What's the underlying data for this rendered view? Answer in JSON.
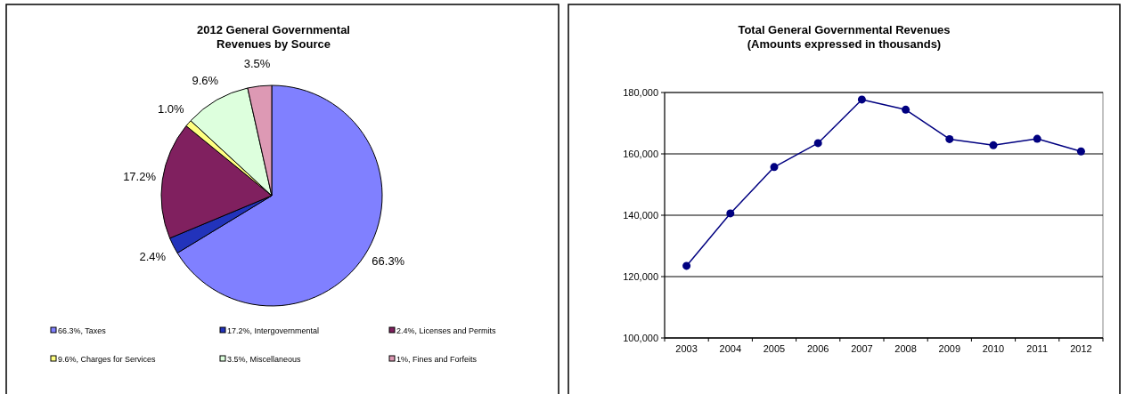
{
  "chart_data": [
    {
      "type": "pie",
      "title": "2012 General Governmental\nRevenues by Source",
      "categories": [
        "66.3%, Taxes",
        "17.2%, Intergovernmental",
        "2.4%, Licenses and Permits",
        "9.6%, Charges for Services",
        "3.5%, Miscellaneous",
        "1%, Fines and Forfeits"
      ],
      "values": [
        66.3,
        2.4,
        17.2,
        1.0,
        9.6,
        3.5
      ],
      "value_labels": [
        "66.3%",
        "2.4%",
        "17.2%",
        "1.0%",
        "9.6%",
        "3.5%"
      ],
      "colors": [
        "#8080ff",
        "#2233bb",
        "#80205f",
        "#ffff80",
        "#ddffdd",
        "#dd99b4"
      ],
      "legend": "bottom"
    },
    {
      "type": "line",
      "title": "Total General Governmental Revenues\n(Amounts expressed in thousands)",
      "categories": [
        "2003",
        "2004",
        "2005",
        "2006",
        "2007",
        "2008",
        "2009",
        "2010",
        "2011",
        "2012"
      ],
      "series": [
        {
          "color": "#000080",
          "values": [
            123500,
            140600,
            155700,
            163500,
            177700,
            174400,
            164800,
            162800,
            164900,
            160800
          ]
        }
      ],
      "ylim": [
        100000,
        180000
      ],
      "yticks": [
        {
          "value": 100000,
          "label": "100,000"
        },
        {
          "value": 120000,
          "label": "120,000"
        },
        {
          "value": 140000,
          "label": "140,000"
        },
        {
          "value": 160000,
          "label": "160,000"
        },
        {
          "value": 180000,
          "label": "180,000"
        }
      ],
      "grid": "y",
      "marker": "circle",
      "line_style": "solid"
    }
  ]
}
